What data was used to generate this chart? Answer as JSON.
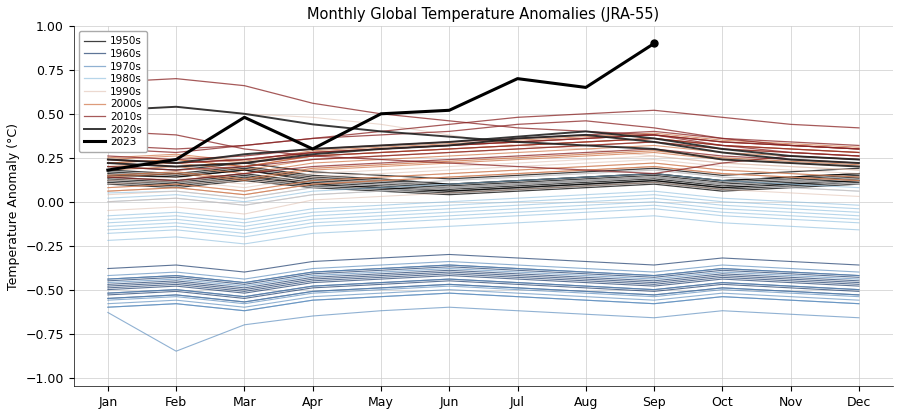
{
  "title": "Monthly Global Temperature Anomalies (JRA-55)",
  "ylabel": "Temperature Anomaly (°C)",
  "months": [
    "Jan",
    "Feb",
    "Mar",
    "Apr",
    "May",
    "Jun",
    "Jul",
    "Aug",
    "Sep",
    "Oct",
    "Nov",
    "Dec"
  ],
  "ylim": [
    -1.05,
    1.0
  ],
  "legend_entries": [
    "1950s",
    "1960s",
    "1970s",
    "1980s",
    "1990s",
    "2000s",
    "2010s",
    "2020s",
    "2023"
  ],
  "decade_colors": {
    "1950s": "#000000",
    "1960s": "#1a3a6b",
    "1970s": "#5588bb",
    "1980s": "#88bbdd",
    "1990s": "#ddbbaa",
    "2000s": "#cc6633",
    "2010s": "#882222",
    "2020s": "#222222",
    "2023": "#000000"
  },
  "decade_alphas": {
    "1950s": 0.75,
    "1960s": 0.7,
    "1970s": 0.65,
    "1980s": 0.6,
    "1990s": 0.55,
    "2000s": 0.65,
    "2010s": 0.75,
    "2020s": 0.9,
    "2023": 1.0
  },
  "years_data": {
    "1950": [
      0.15,
      0.14,
      0.18,
      0.12,
      0.1,
      0.08,
      0.1,
      0.12,
      0.14,
      0.1,
      0.12,
      0.14
    ],
    "1951": [
      0.12,
      0.1,
      0.14,
      0.1,
      0.08,
      0.06,
      0.08,
      0.1,
      0.12,
      0.08,
      0.1,
      0.12
    ],
    "1952": [
      0.18,
      0.16,
      0.2,
      0.15,
      0.13,
      0.1,
      0.12,
      0.14,
      0.16,
      0.12,
      0.14,
      0.16
    ],
    "1953": [
      0.14,
      0.12,
      0.16,
      0.11,
      0.09,
      0.07,
      0.09,
      0.11,
      0.13,
      0.09,
      0.11,
      0.13
    ],
    "1954": [
      0.1,
      0.08,
      0.12,
      0.08,
      0.06,
      0.04,
      0.06,
      0.08,
      0.1,
      0.06,
      0.08,
      0.1
    ],
    "1955": [
      0.13,
      0.11,
      0.15,
      0.1,
      0.08,
      0.06,
      0.08,
      0.1,
      0.12,
      0.08,
      0.1,
      0.12
    ],
    "1956": [
      0.11,
      0.09,
      0.13,
      0.09,
      0.07,
      0.05,
      0.07,
      0.09,
      0.11,
      0.07,
      0.09,
      0.11
    ],
    "1957": [
      0.16,
      0.14,
      0.18,
      0.13,
      0.11,
      0.09,
      0.11,
      0.13,
      0.15,
      0.11,
      0.13,
      0.15
    ],
    "1958": [
      0.2,
      0.18,
      0.22,
      0.17,
      0.15,
      0.13,
      0.15,
      0.17,
      0.19,
      0.15,
      0.17,
      0.19
    ],
    "1959": [
      0.17,
      0.15,
      0.19,
      0.14,
      0.12,
      0.1,
      0.12,
      0.14,
      0.16,
      0.12,
      0.14,
      0.16
    ],
    "1960": [
      -0.5,
      -0.48,
      -0.52,
      -0.46,
      -0.44,
      -0.42,
      -0.44,
      -0.46,
      -0.48,
      -0.44,
      -0.46,
      -0.48
    ],
    "1961": [
      -0.45,
      -0.43,
      -0.47,
      -0.41,
      -0.39,
      -0.37,
      -0.39,
      -0.41,
      -0.43,
      -0.39,
      -0.41,
      -0.43
    ],
    "1962": [
      -0.52,
      -0.5,
      -0.54,
      -0.48,
      -0.46,
      -0.44,
      -0.46,
      -0.48,
      -0.5,
      -0.46,
      -0.48,
      -0.5
    ],
    "1963": [
      -0.48,
      -0.46,
      -0.5,
      -0.44,
      -0.42,
      -0.4,
      -0.42,
      -0.44,
      -0.46,
      -0.42,
      -0.44,
      -0.46
    ],
    "1964": [
      -0.55,
      -0.53,
      -0.57,
      -0.51,
      -0.49,
      -0.47,
      -0.49,
      -0.51,
      -0.53,
      -0.49,
      -0.51,
      -0.53
    ],
    "1965": [
      -0.53,
      -0.51,
      -0.55,
      -0.49,
      -0.47,
      -0.45,
      -0.47,
      -0.49,
      -0.51,
      -0.47,
      -0.49,
      -0.51
    ],
    "1966": [
      -0.47,
      -0.45,
      -0.49,
      -0.43,
      -0.41,
      -0.39,
      -0.41,
      -0.43,
      -0.45,
      -0.41,
      -0.43,
      -0.45
    ],
    "1967": [
      -0.44,
      -0.42,
      -0.46,
      -0.4,
      -0.38,
      -0.36,
      -0.38,
      -0.4,
      -0.42,
      -0.38,
      -0.4,
      -0.42
    ],
    "1968": [
      -0.49,
      -0.47,
      -0.51,
      -0.45,
      -0.43,
      -0.41,
      -0.43,
      -0.45,
      -0.47,
      -0.43,
      -0.45,
      -0.47
    ],
    "1969": [
      -0.38,
      -0.36,
      -0.4,
      -0.34,
      -0.32,
      -0.3,
      -0.32,
      -0.34,
      -0.36,
      -0.32,
      -0.34,
      -0.36
    ],
    "1970": [
      -0.55,
      -0.53,
      -0.57,
      -0.51,
      -0.49,
      -0.47,
      -0.49,
      -0.51,
      -0.53,
      -0.49,
      -0.51,
      -0.53
    ],
    "1971": [
      -0.6,
      -0.58,
      -0.62,
      -0.56,
      -0.54,
      -0.52,
      -0.54,
      -0.56,
      -0.58,
      -0.54,
      -0.56,
      -0.58
    ],
    "1972": [
      -0.56,
      -0.54,
      -0.58,
      -0.52,
      -0.5,
      -0.48,
      -0.5,
      -0.52,
      -0.54,
      -0.5,
      -0.52,
      -0.54
    ],
    "1973": [
      -0.42,
      -0.4,
      -0.44,
      -0.38,
      -0.36,
      -0.34,
      -0.36,
      -0.38,
      -0.4,
      -0.36,
      -0.38,
      -0.4
    ],
    "1974": [
      -0.63,
      -0.85,
      -0.7,
      -0.65,
      -0.62,
      -0.6,
      -0.62,
      -0.64,
      -0.66,
      -0.62,
      -0.64,
      -0.66
    ],
    "1975": [
      -0.58,
      -0.56,
      -0.6,
      -0.54,
      -0.52,
      -0.5,
      -0.52,
      -0.54,
      -0.56,
      -0.52,
      -0.54,
      -0.56
    ],
    "1976": [
      -0.6,
      -0.58,
      -0.62,
      -0.56,
      -0.54,
      -0.52,
      -0.54,
      -0.56,
      -0.58,
      -0.54,
      -0.56,
      -0.58
    ],
    "1977": [
      -0.46,
      -0.44,
      -0.48,
      -0.42,
      -0.4,
      -0.38,
      -0.4,
      -0.42,
      -0.44,
      -0.4,
      -0.42,
      -0.44
    ],
    "1978": [
      -0.52,
      -0.5,
      -0.54,
      -0.48,
      -0.46,
      -0.44,
      -0.46,
      -0.48,
      -0.5,
      -0.46,
      -0.48,
      -0.5
    ],
    "1979": [
      -0.44,
      -0.42,
      -0.46,
      -0.4,
      -0.38,
      -0.36,
      -0.38,
      -0.4,
      -0.42,
      -0.38,
      -0.4,
      -0.42
    ],
    "1980": [
      -0.18,
      -0.16,
      -0.2,
      -0.14,
      -0.12,
      -0.1,
      -0.08,
      -0.06,
      -0.04,
      -0.08,
      -0.1,
      -0.12
    ],
    "1981": [
      -0.1,
      -0.08,
      -0.12,
      -0.06,
      -0.04,
      -0.02,
      0.0,
      0.02,
      0.04,
      0.0,
      -0.02,
      -0.04
    ],
    "1982": [
      -0.22,
      -0.2,
      -0.24,
      -0.18,
      -0.16,
      -0.14,
      -0.12,
      -0.1,
      -0.08,
      -0.12,
      -0.14,
      -0.16
    ],
    "1983": [
      0.05,
      0.06,
      0.02,
      0.08,
      0.1,
      0.12,
      0.14,
      0.16,
      0.18,
      0.14,
      0.12,
      0.1
    ],
    "1984": [
      -0.14,
      -0.12,
      -0.16,
      -0.1,
      -0.08,
      -0.06,
      -0.04,
      -0.02,
      0.0,
      -0.04,
      -0.06,
      -0.08
    ],
    "1985": [
      -0.16,
      -0.14,
      -0.18,
      -0.12,
      -0.1,
      -0.08,
      -0.06,
      -0.04,
      -0.02,
      -0.06,
      -0.08,
      -0.1
    ],
    "1986": [
      -0.08,
      -0.06,
      -0.1,
      -0.04,
      -0.02,
      0.0,
      0.02,
      0.04,
      0.06,
      0.02,
      0.0,
      -0.02
    ],
    "1987": [
      0.02,
      0.04,
      0.0,
      0.06,
      0.08,
      0.1,
      0.12,
      0.14,
      0.16,
      0.12,
      0.1,
      0.08
    ],
    "1988": [
      0.0,
      0.02,
      -0.02,
      0.04,
      0.06,
      0.08,
      0.1,
      0.12,
      0.14,
      0.1,
      0.08,
      0.06
    ],
    "1989": [
      -0.12,
      -0.1,
      -0.14,
      -0.08,
      -0.06,
      -0.04,
      -0.02,
      0.0,
      0.02,
      -0.02,
      -0.04,
      -0.06
    ],
    "1990": [
      0.12,
      0.14,
      0.1,
      0.16,
      0.18,
      0.2,
      0.22,
      0.24,
      0.26,
      0.22,
      0.2,
      0.18
    ],
    "1991": [
      0.06,
      0.08,
      0.04,
      0.1,
      0.12,
      0.14,
      0.16,
      0.18,
      0.2,
      0.16,
      0.14,
      0.12
    ],
    "1992": [
      -0.05,
      -0.03,
      -0.07,
      0.01,
      0.03,
      0.05,
      0.07,
      0.09,
      0.11,
      0.07,
      0.05,
      0.03
    ],
    "1993": [
      0.0,
      0.02,
      -0.02,
      0.04,
      0.06,
      0.08,
      0.1,
      0.12,
      0.14,
      0.1,
      0.08,
      0.06
    ],
    "1994": [
      0.08,
      0.1,
      0.06,
      0.12,
      0.14,
      0.16,
      0.18,
      0.2,
      0.22,
      0.18,
      0.16,
      0.14
    ],
    "1995": [
      0.15,
      0.17,
      0.13,
      0.19,
      0.21,
      0.23,
      0.25,
      0.27,
      0.29,
      0.25,
      0.23,
      0.21
    ],
    "1996": [
      0.04,
      0.06,
      0.02,
      0.08,
      0.1,
      0.12,
      0.14,
      0.16,
      0.18,
      0.14,
      0.12,
      0.1
    ],
    "1997": [
      0.1,
      0.12,
      0.08,
      0.14,
      0.16,
      0.18,
      0.2,
      0.22,
      0.24,
      0.2,
      0.18,
      0.16
    ],
    "1998": [
      0.52,
      0.54,
      0.5,
      0.48,
      0.44,
      0.38,
      0.32,
      0.3,
      0.26,
      0.22,
      0.2,
      0.18
    ],
    "1999": [
      0.06,
      0.08,
      0.04,
      0.1,
      0.12,
      0.14,
      0.16,
      0.18,
      0.2,
      0.16,
      0.14,
      0.12
    ],
    "2000": [
      0.08,
      0.1,
      0.06,
      0.12,
      0.14,
      0.16,
      0.18,
      0.2,
      0.22,
      0.18,
      0.16,
      0.14
    ],
    "2001": [
      0.18,
      0.2,
      0.16,
      0.22,
      0.24,
      0.26,
      0.28,
      0.3,
      0.32,
      0.28,
      0.26,
      0.24
    ],
    "2002": [
      0.25,
      0.27,
      0.23,
      0.29,
      0.31,
      0.33,
      0.35,
      0.37,
      0.39,
      0.35,
      0.33,
      0.31
    ],
    "2003": [
      0.22,
      0.24,
      0.2,
      0.26,
      0.28,
      0.3,
      0.32,
      0.34,
      0.36,
      0.32,
      0.3,
      0.28
    ],
    "2004": [
      0.15,
      0.17,
      0.13,
      0.19,
      0.21,
      0.23,
      0.25,
      0.27,
      0.29,
      0.25,
      0.23,
      0.21
    ],
    "2005": [
      0.24,
      0.26,
      0.22,
      0.28,
      0.3,
      0.32,
      0.34,
      0.36,
      0.38,
      0.34,
      0.32,
      0.3
    ],
    "2006": [
      0.14,
      0.16,
      0.12,
      0.18,
      0.2,
      0.22,
      0.24,
      0.26,
      0.28,
      0.24,
      0.22,
      0.2
    ],
    "2007": [
      0.22,
      0.24,
      0.2,
      0.26,
      0.28,
      0.3,
      0.32,
      0.34,
      0.36,
      0.32,
      0.3,
      0.28
    ],
    "2008": [
      0.06,
      0.08,
      0.04,
      0.1,
      0.12,
      0.14,
      0.16,
      0.18,
      0.2,
      0.16,
      0.14,
      0.12
    ],
    "2009": [
      0.2,
      0.22,
      0.18,
      0.24,
      0.26,
      0.28,
      0.3,
      0.32,
      0.34,
      0.3,
      0.28,
      0.26
    ],
    "2010": [
      0.4,
      0.38,
      0.3,
      0.26,
      0.24,
      0.22,
      0.2,
      0.18,
      0.16,
      0.22,
      0.26,
      0.24
    ],
    "2011": [
      0.14,
      0.12,
      0.16,
      0.2,
      0.22,
      0.24,
      0.26,
      0.28,
      0.3,
      0.26,
      0.24,
      0.22
    ],
    "2012": [
      0.22,
      0.2,
      0.22,
      0.26,
      0.28,
      0.3,
      0.32,
      0.34,
      0.36,
      0.32,
      0.3,
      0.28
    ],
    "2013": [
      0.24,
      0.22,
      0.24,
      0.28,
      0.3,
      0.32,
      0.34,
      0.36,
      0.38,
      0.34,
      0.32,
      0.3
    ],
    "2014": [
      0.26,
      0.24,
      0.26,
      0.3,
      0.32,
      0.34,
      0.36,
      0.38,
      0.4,
      0.36,
      0.34,
      0.32
    ],
    "2015": [
      0.32,
      0.3,
      0.32,
      0.36,
      0.4,
      0.44,
      0.48,
      0.5,
      0.52,
      0.48,
      0.44,
      0.42
    ],
    "2016": [
      0.68,
      0.7,
      0.66,
      0.56,
      0.5,
      0.46,
      0.42,
      0.4,
      0.38,
      0.32,
      0.28,
      0.26
    ],
    "2017": [
      0.24,
      0.22,
      0.24,
      0.28,
      0.3,
      0.32,
      0.34,
      0.36,
      0.38,
      0.34,
      0.32,
      0.3
    ],
    "2018": [
      0.2,
      0.18,
      0.2,
      0.24,
      0.26,
      0.28,
      0.3,
      0.32,
      0.34,
      0.3,
      0.28,
      0.26
    ],
    "2019": [
      0.3,
      0.28,
      0.32,
      0.36,
      0.38,
      0.4,
      0.44,
      0.46,
      0.42,
      0.36,
      0.32,
      0.3
    ],
    "2020": [
      0.52,
      0.54,
      0.5,
      0.44,
      0.4,
      0.37,
      0.34,
      0.32,
      0.3,
      0.24,
      0.22,
      0.2
    ],
    "2021": [
      0.22,
      0.2,
      0.22,
      0.27,
      0.3,
      0.32,
      0.36,
      0.38,
      0.34,
      0.28,
      0.24,
      0.22
    ],
    "2022": [
      0.24,
      0.22,
      0.27,
      0.3,
      0.32,
      0.34,
      0.37,
      0.4,
      0.36,
      0.3,
      0.26,
      0.24
    ],
    "2023": [
      0.18,
      0.24,
      0.48,
      0.3,
      0.5,
      0.52,
      0.7,
      0.65,
      0.9,
      null,
      null,
      null
    ]
  }
}
